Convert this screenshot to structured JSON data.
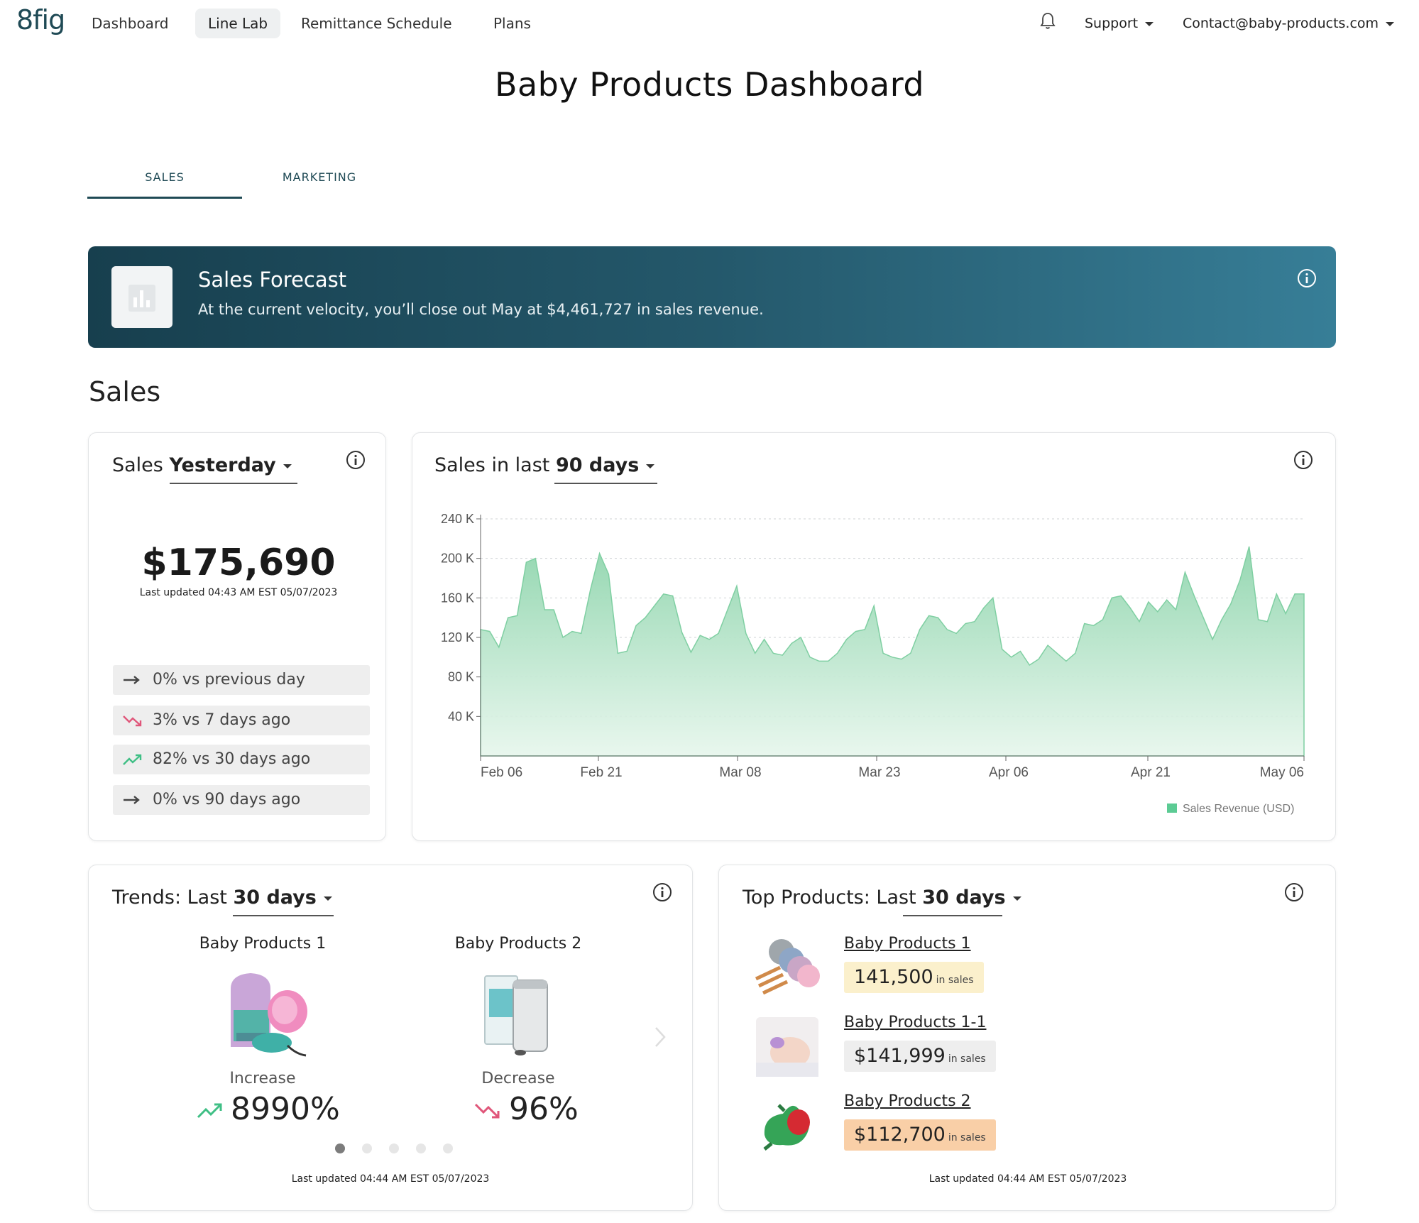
{
  "nav": {
    "logo": "8fig",
    "items": [
      {
        "label": "Dashboard"
      },
      {
        "label": "Line Lab"
      },
      {
        "label": "Remittance Schedule"
      },
      {
        "label": "Plans"
      }
    ],
    "support": "Support",
    "account": "Contact@baby-products.com"
  },
  "page": {
    "title": "Baby Products Dashboard"
  },
  "tabs": [
    {
      "label": "SALES",
      "active": true
    },
    {
      "label": "MARKETING",
      "active": false
    }
  ],
  "forecast": {
    "title": "Sales Forecast",
    "text": "At the current velocity, you’ll close out May at $4,461,727 in sales revenue."
  },
  "sales_section": {
    "title": "Sales"
  },
  "sales_yesterday": {
    "prefix": "Sales",
    "period": "Yesterday",
    "value": "$175,690",
    "updated": "Last updated 04:43 AM EST 05/07/2023",
    "comparisons": [
      {
        "text": "0% vs previous day",
        "trend": "flat"
      },
      {
        "text": "3% vs 7 days ago",
        "trend": "down"
      },
      {
        "text": "82% vs 30 days ago",
        "trend": "up"
      },
      {
        "text": "0% vs 90 days ago",
        "trend": "flat"
      }
    ]
  },
  "sales_chart": {
    "prefix": "Sales in last",
    "period": "90 days",
    "colors": {
      "fill": "#8fd5ad",
      "line": "#7fcfa2",
      "legend": "#5ccb94"
    }
  },
  "chart_data": {
    "type": "area",
    "title": "Sales in last 90 days",
    "series_name": "Sales Revenue (USD)",
    "y_ticks": [
      "240 K",
      "200 K",
      "160 K",
      "120 K",
      "80 K",
      "40 K"
    ],
    "x_ticks": [
      "Feb 06",
      "Feb 21",
      "Mar 08",
      "Mar 23",
      "Apr 06",
      "Apr 21",
      "May 06"
    ],
    "ylim": [
      0,
      240000
    ],
    "grid": true,
    "legend": "bottom-right",
    "values": [
      128000,
      126000,
      110000,
      140000,
      142000,
      196000,
      200000,
      148000,
      148000,
      120000,
      126000,
      124000,
      168000,
      205000,
      184000,
      104000,
      106000,
      132000,
      140000,
      152000,
      164000,
      162000,
      125000,
      105000,
      122000,
      118000,
      124000,
      148000,
      172000,
      124000,
      104000,
      118000,
      104000,
      102000,
      114000,
      120000,
      100000,
      96000,
      96000,
      104000,
      118000,
      126000,
      128000,
      152000,
      104000,
      100000,
      98000,
      104000,
      128000,
      142000,
      140000,
      128000,
      124000,
      134000,
      136000,
      150000,
      160000,
      108000,
      100000,
      106000,
      92000,
      98000,
      112000,
      104000,
      96000,
      104000,
      134000,
      132000,
      138000,
      160000,
      162000,
      150000,
      136000,
      156000,
      146000,
      158000,
      148000,
      186000,
      162000,
      140000,
      118000,
      138000,
      154000,
      178000,
      212000,
      138000,
      136000,
      164000,
      144000,
      164000,
      164000
    ]
  },
  "trends": {
    "prefix": "Trends: Last",
    "period": "30 days",
    "products": [
      {
        "name": "Baby Products 1",
        "label": "Increase",
        "value": "8990%",
        "trend": "up"
      },
      {
        "name": "Baby Products 2",
        "label": "Decrease",
        "value": "96%",
        "trend": "down"
      }
    ],
    "updated": "Last updated 04:44 AM EST 05/07/2023",
    "page_dots": 5,
    "active_dot": 0
  },
  "top_products": {
    "prefix": "Top Products: Last",
    "period": "30 days",
    "items": [
      {
        "name": "Baby Products 1",
        "value": "141,500",
        "unit": "in sales",
        "color": "#fbf0cc"
      },
      {
        "name": "Baby Products 1-1",
        "value": "$141,999",
        "unit": "in sales",
        "color": "#eeeeee"
      },
      {
        "name": "Baby Products 2",
        "value": "$112,700",
        "unit": "in sales",
        "color": "#f9cfa7"
      }
    ],
    "updated": "Last updated 04:44 AM EST 05/07/2023"
  }
}
